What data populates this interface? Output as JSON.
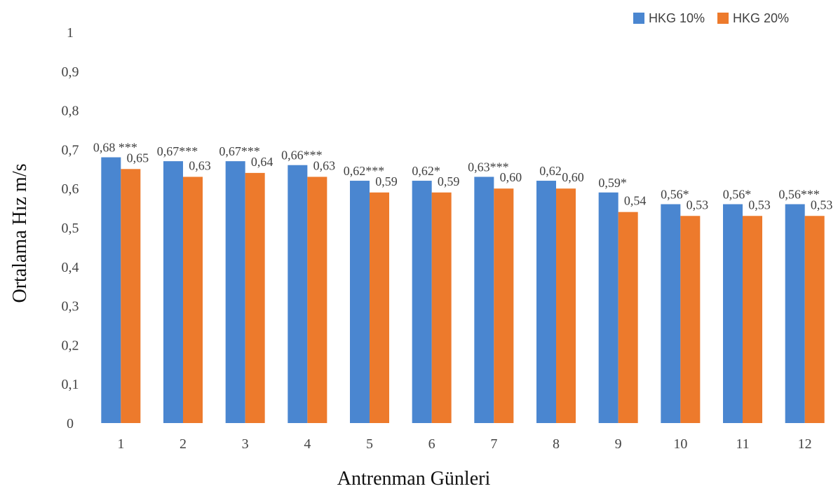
{
  "chart_data": {
    "type": "bar",
    "title": "",
    "xlabel": "Antrenman Günleri",
    "ylabel": "Ortalama Hız m/s",
    "ylim": [
      0,
      1
    ],
    "yticks": [
      "0",
      "0,1",
      "0,2",
      "0,3",
      "0,4",
      "0,5",
      "0,6",
      "0,7",
      "0,8",
      "0,9",
      "1"
    ],
    "grid": false,
    "legend_position": "top-right",
    "categories": [
      "1",
      "2",
      "3",
      "4",
      "5",
      "6",
      "7",
      "8",
      "9",
      "10",
      "11",
      "12"
    ],
    "series": [
      {
        "name": "HKG 10%",
        "color": "#4a86d0",
        "values": [
          0.68,
          0.67,
          0.67,
          0.66,
          0.62,
          0.62,
          0.63,
          0.62,
          0.59,
          0.56,
          0.56,
          0.56
        ],
        "labels": [
          "0,68 ***",
          "0,67***",
          "0,67***",
          "0,66***",
          "0,62***",
          "0,62*",
          "0,63***",
          "0,62",
          "0,59*",
          "0,56*",
          "0,56*",
          "0,56***"
        ]
      },
      {
        "name": "HKG 20%",
        "color": "#ed7a2c",
        "values": [
          0.65,
          0.63,
          0.64,
          0.63,
          0.59,
          0.59,
          0.6,
          0.6,
          0.54,
          0.53,
          0.53,
          0.53
        ],
        "labels": [
          "0,65",
          "0,63",
          "0,64",
          "0,63",
          "0,59",
          "0,59",
          "0,60",
          "0,60",
          "0,54",
          "0,53",
          "0,53",
          "0,53"
        ]
      }
    ]
  }
}
